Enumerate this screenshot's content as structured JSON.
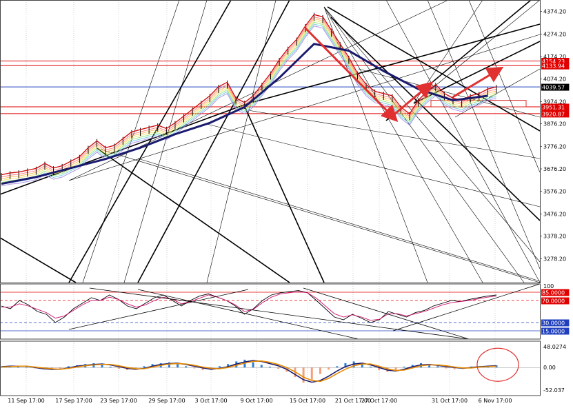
{
  "chart_data": [
    {
      "type": "line",
      "panel": "price",
      "title": "",
      "xlabel": "",
      "ylabel": "",
      "ylim": [
        3178.2,
        4394.2
      ],
      "yticks": [
        {
          "value": 4374.2,
          "label": "4374.20"
        },
        {
          "value": 4274.2,
          "label": "4274.20"
        },
        {
          "value": 4174.2,
          "label": "4174.20"
        },
        {
          "value": 4074.2,
          "label": "4074.20"
        },
        {
          "value": 3974.2,
          "label": "3974.20"
        },
        {
          "value": 3876.2,
          "label": "3876.20"
        },
        {
          "value": 3776.2,
          "label": "3776.20"
        },
        {
          "value": 3676.2,
          "label": "3676.20"
        },
        {
          "value": 3576.2,
          "label": "3576.20"
        },
        {
          "value": 3476.2,
          "label": "3476.20"
        },
        {
          "value": 3378.2,
          "label": "3378.20"
        },
        {
          "value": 3278.2,
          "label": "3278.20"
        }
      ],
      "xticks": [
        "11 Sep 17:00",
        "17 Sep 17:00",
        "23 Sep 17:00",
        "29 Sep 17:00",
        "3 Oct 17:00",
        "9 Oct 17:00",
        "15 Oct 17:00",
        "21 Oct 17:00",
        "27 Oct 17:00",
        "31 Oct 17:00",
        "6 Nov 17:00"
      ],
      "current_price": {
        "value": 4039.57,
        "label": "4039.57",
        "color": "#000000"
      },
      "levels": [
        {
          "value": 4154.23,
          "label": "4154.23",
          "color": "#e00000"
        },
        {
          "value": 4133.94,
          "label": "4133.94",
          "color": "#e00000"
        },
        {
          "value": 3951.31,
          "label": "3951.31",
          "color": "#e00000"
        },
        {
          "value": 3920.87,
          "label": "3920.87",
          "color": "#e00000"
        },
        {
          "value": 4039.57,
          "label": "",
          "color": "#1f3fbf"
        }
      ],
      "series": [
        {
          "name": "",
          "color": "#e8a0a0",
          "x": [
            "11 Sep",
            "12 Sep",
            "13 Sep",
            "14 Sep",
            "15 Sep",
            "16 Sep",
            "17 Sep",
            "18 Sep",
            "19 Sep",
            "20 Sep",
            "21 Sep",
            "22 Sep",
            "23 Sep",
            "24 Sep",
            "25 Sep",
            "26 Sep",
            "27 Sep",
            "28 Sep",
            "29 Sep",
            "30 Sep",
            "1 Oct",
            "2 Oct",
            "3 Oct",
            "4 Oct",
            "5 Oct",
            "6 Oct",
            "7 Oct",
            "8 Oct",
            "9 Oct",
            "10 Oct",
            "11 Oct",
            "12 Oct",
            "13 Oct",
            "14 Oct",
            "15 Oct",
            "16 Oct",
            "17 Oct",
            "18 Oct",
            "19 Oct",
            "20 Oct",
            "21 Oct",
            "22 Oct",
            "23 Oct",
            "24 Oct",
            "25 Oct",
            "26 Oct",
            "27 Oct",
            "28 Oct",
            "29 Oct",
            "30 Oct",
            "31 Oct",
            "1 Nov",
            "2 Nov",
            "3 Nov",
            "4 Nov",
            "5 Nov",
            "6 Nov",
            "7 Nov"
          ],
          "values": [
            3640,
            3648,
            3652,
            3660,
            3668,
            3690,
            3670,
            3680,
            3700,
            3720,
            3760,
            3790,
            3760,
            3770,
            3800,
            3830,
            3840,
            3850,
            3860,
            3845,
            3870,
            3900,
            3930,
            3960,
            3990,
            4030,
            4050,
            3980,
            3960,
            3990,
            4040,
            4090,
            4150,
            4200,
            4240,
            4300,
            4350,
            4340,
            4280,
            4220,
            4160,
            4090,
            4040,
            4010,
            4000,
            3990,
            3940,
            3910,
            3970,
            4010,
            4040,
            4000,
            3980,
            3970,
            3990,
            4000,
            4020,
            4030
          ]
        },
        {
          "name": "",
          "color": "#1a1a6e",
          "x": [
            "11 Sep",
            "15 Sep",
            "19 Sep",
            "23 Sep",
            "27 Sep",
            "1 Oct",
            "5 Oct",
            "9 Oct",
            "13 Oct",
            "17 Oct",
            "21 Oct",
            "25 Oct",
            "29 Oct",
            "2 Nov",
            "6 Nov"
          ],
          "values": [
            3610,
            3640,
            3680,
            3720,
            3770,
            3830,
            3880,
            3950,
            4080,
            4230,
            4200,
            4110,
            4030,
            3980,
            4000
          ]
        }
      ],
      "annotations": [
        {
          "kind": "arrow",
          "color": "#e03030",
          "from": [
            "16 Oct",
            4300
          ],
          "to": [
            "26 Oct",
            3910
          ]
        },
        {
          "kind": "arrow",
          "color": "#e03030",
          "from": [
            "26 Oct",
            3910
          ],
          "to": [
            "30 Oct",
            4040
          ]
        },
        {
          "kind": "arrow",
          "color": "#e03030",
          "from": [
            "2 Nov",
            3995
          ],
          "to": [
            "7 Nov",
            4110
          ]
        }
      ]
    },
    {
      "type": "line",
      "panel": "oscillator",
      "title": "",
      "ylim": [
        0,
        100
      ],
      "levels": [
        {
          "value": 85.0,
          "label": "85.0000",
          "color": "#e00000"
        },
        {
          "value": 70.0,
          "label": "70.0000",
          "color": "#e00000"
        },
        {
          "value": 30.0,
          "label": "30.0000",
          "color": "#1f3fbf"
        },
        {
          "value": 15.0,
          "label": "15.0000",
          "color": "#1f3fbf"
        }
      ],
      "axis_labels": [
        {
          "value": 100,
          "label": "100"
        }
      ],
      "series": [
        {
          "name": "",
          "color": "#000000",
          "values": [
            60,
            55,
            70,
            62,
            50,
            45,
            30,
            40,
            55,
            65,
            75,
            70,
            80,
            72,
            60,
            55,
            65,
            75,
            80,
            70,
            60,
            70,
            78,
            82,
            76,
            70,
            60,
            45,
            55,
            70,
            80,
            84,
            86,
            88,
            84,
            70,
            55,
            40,
            35,
            45,
            38,
            30,
            35,
            50,
            45,
            40,
            48,
            52,
            60,
            65,
            70,
            68,
            72,
            75,
            78,
            80
          ]
        },
        {
          "name": "",
          "color": "#d01070",
          "values": [
            58,
            58,
            64,
            60,
            54,
            48,
            38,
            42,
            52,
            62,
            70,
            70,
            76,
            72,
            64,
            58,
            62,
            70,
            76,
            72,
            64,
            68,
            74,
            80,
            76,
            70,
            62,
            50,
            54,
            66,
            76,
            82,
            84,
            86,
            84,
            74,
            60,
            46,
            40,
            44,
            40,
            34,
            36,
            46,
            46,
            42,
            46,
            50,
            56,
            62,
            66,
            68,
            70,
            73,
            76,
            78
          ]
        }
      ]
    },
    {
      "type": "bar",
      "panel": "histogram",
      "title": "",
      "ylim": [
        -52.037,
        48.0274
      ],
      "axis_labels": [
        {
          "value": 48.0274,
          "label": "48.0274"
        },
        {
          "value": 0.0,
          "label": "0.00"
        },
        {
          "value": -52.037,
          "label": "-52.037"
        }
      ],
      "values": [
        2,
        3,
        4,
        2,
        -2,
        -4,
        -6,
        -3,
        3,
        5,
        8,
        10,
        6,
        2,
        -3,
        -6,
        -4,
        3,
        8,
        10,
        12,
        8,
        3,
        -2,
        -6,
        -4,
        3,
        8,
        14,
        18,
        12,
        6,
        2,
        -3,
        -10,
        -22,
        -35,
        -28,
        -15,
        -5,
        3,
        10,
        14,
        8,
        2,
        -6,
        -10,
        -6,
        2,
        6,
        10,
        6,
        3,
        -2,
        -4,
        -2,
        2,
        3,
        4,
        5
      ],
      "series": [
        {
          "name": "",
          "color": "#1a1a6e",
          "values": [
            2,
            3,
            3,
            3,
            0,
            -3,
            -4,
            -4,
            -1,
            3,
            5,
            7,
            8,
            6,
            2,
            -2,
            -4,
            -2,
            3,
            7,
            9,
            10,
            7,
            3,
            -1,
            -4,
            -2,
            2,
            8,
            13,
            16,
            14,
            9,
            4,
            -4,
            -16,
            -28,
            -34,
            -30,
            -20,
            -8,
            2,
            8,
            10,
            6,
            0,
            -6,
            -8,
            -4,
            2,
            6,
            7,
            5,
            2,
            0,
            -2,
            0,
            2,
            3,
            4
          ]
        },
        {
          "name": "",
          "color": "#e68a00",
          "values": [
            1,
            2,
            3,
            3,
            1,
            -1,
            -3,
            -4,
            -2,
            1,
            4,
            6,
            7,
            7,
            4,
            0,
            -3,
            -3,
            1,
            5,
            8,
            9,
            8,
            5,
            1,
            -2,
            -3,
            0,
            5,
            10,
            14,
            15,
            12,
            7,
            0,
            -10,
            -22,
            -30,
            -32,
            -25,
            -14,
            -4,
            4,
            8,
            8,
            3,
            -3,
            -7,
            -6,
            -1,
            4,
            6,
            6,
            4,
            1,
            -1,
            -1,
            1,
            2,
            3
          ]
        }
      ],
      "annotations": [
        {
          "kind": "circle",
          "color": "#e03030"
        }
      ]
    }
  ]
}
